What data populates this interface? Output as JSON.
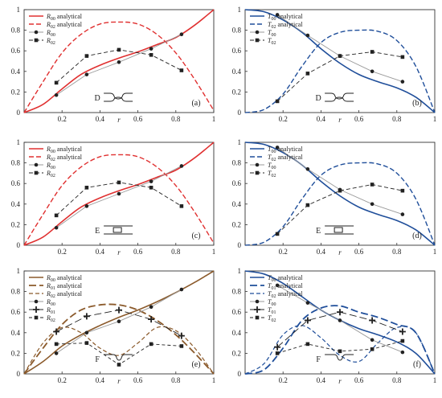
{
  "chart_data": [
    {
      "type": "line",
      "id": "a",
      "panel_label": "(a)",
      "inset_letter": "D",
      "inset_shape": "bump",
      "xlabel": "r",
      "xlim": [
        0,
        1
      ],
      "ylim": [
        0,
        1
      ],
      "xticks": [
        "0",
        "0.2",
        "0.4",
        "0.6",
        "0.8",
        "1"
      ],
      "yticks": [
        "0",
        "0.2",
        "0.4",
        "0.6",
        "0.8",
        "1"
      ],
      "legend": "top-left",
      "series": [
        {
          "name": "R_00 analytical",
          "label": "R",
          "sub": "00",
          "suffix": " analytical",
          "kind": "line",
          "color": "#e03030",
          "dash": "",
          "width": 1.6,
          "x": [
            0,
            0.1,
            0.2,
            0.3,
            0.4,
            0.5,
            0.6,
            0.7,
            0.8,
            0.9,
            1.0
          ],
          "y": [
            0,
            0.08,
            0.23,
            0.37,
            0.46,
            0.53,
            0.59,
            0.66,
            0.73,
            0.85,
            1.0
          ]
        },
        {
          "name": "R_02 analytical",
          "label": "R",
          "sub": "02",
          "suffix": " analytical",
          "kind": "line",
          "color": "#e03030",
          "dash": "6,3",
          "width": 1.4,
          "x": [
            0,
            0.1,
            0.2,
            0.3,
            0.4,
            0.5,
            0.6,
            0.7,
            0.8,
            0.9,
            1.0
          ],
          "y": [
            0,
            0.3,
            0.58,
            0.76,
            0.86,
            0.88,
            0.86,
            0.76,
            0.58,
            0.32,
            0.02
          ]
        },
        {
          "name": "R_00",
          "label": "R",
          "sub": "00",
          "suffix": "",
          "kind": "points",
          "marker": "circle",
          "color": "#222222",
          "line": "#999999",
          "x": [
            0.17,
            0.33,
            0.5,
            0.67,
            0.83
          ],
          "y": [
            0.17,
            0.37,
            0.49,
            0.62,
            0.76
          ]
        },
        {
          "name": "R_02",
          "label": "R",
          "sub": "02",
          "suffix": "",
          "kind": "points",
          "marker": "square",
          "color": "#222222",
          "line": "#222222",
          "linedash": "5,3",
          "x": [
            0.17,
            0.33,
            0.5,
            0.67,
            0.83
          ],
          "y": [
            0.29,
            0.55,
            0.61,
            0.56,
            0.41
          ]
        }
      ]
    },
    {
      "type": "line",
      "id": "b",
      "panel_label": "(b)",
      "inset_letter": "D",
      "inset_shape": "bump",
      "xlabel": "r",
      "xlim": [
        0,
        1
      ],
      "ylim": [
        0,
        1
      ],
      "xticks": [
        "0",
        "0.2",
        "0.4",
        "0.6",
        "0.8",
        "1"
      ],
      "yticks": [
        "0",
        "0.2",
        "0.4",
        "0.6",
        "0.8",
        "1"
      ],
      "legend": "top-left",
      "series": [
        {
          "name": "T_00 analytical",
          "label": "T",
          "sub": "00",
          "suffix": " analytical",
          "kind": "line",
          "color": "#1f4e9a",
          "dash": "",
          "width": 1.6,
          "x": [
            0,
            0.1,
            0.2,
            0.3,
            0.4,
            0.5,
            0.6,
            0.7,
            0.8,
            0.9,
            1.0
          ],
          "y": [
            1.0,
            0.98,
            0.9,
            0.78,
            0.62,
            0.48,
            0.37,
            0.3,
            0.24,
            0.15,
            0.0
          ]
        },
        {
          "name": "T_02 analytical",
          "label": "T",
          "sub": "02",
          "suffix": " analytical",
          "kind": "line",
          "color": "#1f4e9a",
          "dash": "6,3",
          "width": 1.4,
          "x": [
            0,
            0.1,
            0.2,
            0.3,
            0.4,
            0.5,
            0.6,
            0.7,
            0.8,
            0.9,
            1.0
          ],
          "y": [
            0,
            0.03,
            0.18,
            0.45,
            0.68,
            0.78,
            0.8,
            0.79,
            0.7,
            0.45,
            0.0
          ]
        },
        {
          "name": "T_00",
          "label": "T",
          "sub": "00",
          "suffix": "",
          "kind": "points",
          "marker": "circle",
          "color": "#222222",
          "line": "#999999",
          "x": [
            0.17,
            0.33,
            0.5,
            0.67,
            0.83
          ],
          "y": [
            0.95,
            0.75,
            0.55,
            0.4,
            0.3
          ]
        },
        {
          "name": "T_02",
          "label": "T",
          "sub": "02",
          "suffix": "",
          "kind": "points",
          "marker": "square",
          "color": "#222222",
          "line": "#222222",
          "linedash": "5,3",
          "x": [
            0.17,
            0.33,
            0.5,
            0.67,
            0.83
          ],
          "y": [
            0.11,
            0.38,
            0.55,
            0.59,
            0.54
          ]
        }
      ]
    },
    {
      "type": "line",
      "id": "c",
      "panel_label": "(c)",
      "inset_letter": "E",
      "inset_shape": "box",
      "xlabel": "r",
      "xlim": [
        0,
        1
      ],
      "ylim": [
        0,
        1
      ],
      "xticks": [
        "0",
        "0.2",
        "0.4",
        "0.6",
        "0.8",
        "1"
      ],
      "yticks": [
        "0",
        "0.2",
        "0.4",
        "0.6",
        "0.8",
        "1"
      ],
      "legend": "top-left",
      "series": [
        {
          "name": "R_00 analytical",
          "label": "R",
          "sub": "00",
          "suffix": " analytical",
          "kind": "line",
          "color": "#e03030",
          "dash": "",
          "width": 1.6,
          "x": [
            0,
            0.1,
            0.2,
            0.3,
            0.4,
            0.5,
            0.6,
            0.7,
            0.8,
            0.9,
            1.0
          ],
          "y": [
            0,
            0.08,
            0.23,
            0.37,
            0.46,
            0.53,
            0.59,
            0.66,
            0.73,
            0.85,
            1.0
          ]
        },
        {
          "name": "R_02 analytical",
          "label": "R",
          "sub": "02",
          "suffix": " analytical",
          "kind": "line",
          "color": "#e03030",
          "dash": "6,3",
          "width": 1.4,
          "x": [
            0,
            0.1,
            0.2,
            0.3,
            0.4,
            0.5,
            0.6,
            0.7,
            0.8,
            0.9,
            1.0
          ],
          "y": [
            0,
            0.3,
            0.58,
            0.76,
            0.86,
            0.88,
            0.86,
            0.76,
            0.58,
            0.32,
            0.02
          ]
        },
        {
          "name": "R_00",
          "label": "R",
          "sub": "00",
          "suffix": "",
          "kind": "points",
          "marker": "circle",
          "color": "#222222",
          "line": "#999999",
          "x": [
            0.17,
            0.33,
            0.5,
            0.67,
            0.83
          ],
          "y": [
            0.17,
            0.38,
            0.5,
            0.62,
            0.77
          ]
        },
        {
          "name": "R_02",
          "label": "R",
          "sub": "02",
          "suffix": "",
          "kind": "points",
          "marker": "square",
          "color": "#222222",
          "line": "#222222",
          "linedash": "5,3",
          "x": [
            0.17,
            0.33,
            0.5,
            0.67,
            0.83
          ],
          "y": [
            0.29,
            0.56,
            0.61,
            0.56,
            0.38
          ]
        }
      ]
    },
    {
      "type": "line",
      "id": "d",
      "panel_label": "(d)",
      "inset_letter": "E",
      "inset_shape": "box",
      "xlabel": "r",
      "xlim": [
        0,
        1
      ],
      "ylim": [
        0,
        1
      ],
      "xticks": [
        "0",
        "0.2",
        "0.4",
        "0.6",
        "0.8",
        "1"
      ],
      "yticks": [
        "0",
        "0.2",
        "0.4",
        "0.6",
        "0.8",
        "1"
      ],
      "legend": "top-left",
      "series": [
        {
          "name": "T_00 analytical",
          "label": "T",
          "sub": "00",
          "suffix": " analytical",
          "kind": "line",
          "color": "#1f4e9a",
          "dash": "",
          "width": 1.6,
          "x": [
            0,
            0.1,
            0.2,
            0.3,
            0.4,
            0.5,
            0.6,
            0.7,
            0.8,
            0.9,
            1.0
          ],
          "y": [
            1.0,
            0.98,
            0.9,
            0.78,
            0.62,
            0.48,
            0.37,
            0.3,
            0.24,
            0.15,
            0.0
          ]
        },
        {
          "name": "T_02 analytical",
          "label": "T",
          "sub": "02",
          "suffix": " analytical",
          "kind": "line",
          "color": "#1f4e9a",
          "dash": "6,3",
          "width": 1.4,
          "x": [
            0,
            0.1,
            0.2,
            0.3,
            0.4,
            0.5,
            0.6,
            0.7,
            0.8,
            0.9,
            1.0
          ],
          "y": [
            0,
            0.03,
            0.18,
            0.45,
            0.68,
            0.78,
            0.8,
            0.79,
            0.7,
            0.45,
            0.0
          ]
        },
        {
          "name": "T_00",
          "label": "T",
          "sub": "00",
          "suffix": "",
          "kind": "points",
          "marker": "circle",
          "color": "#222222",
          "line": "#999999",
          "x": [
            0.17,
            0.33,
            0.5,
            0.67,
            0.83
          ],
          "y": [
            0.95,
            0.74,
            0.54,
            0.4,
            0.3
          ]
        },
        {
          "name": "T_02",
          "label": "T",
          "sub": "02",
          "suffix": "",
          "kind": "points",
          "marker": "square",
          "color": "#222222",
          "line": "#222222",
          "linedash": "5,3",
          "x": [
            0.17,
            0.33,
            0.5,
            0.67,
            0.83
          ],
          "y": [
            0.11,
            0.39,
            0.53,
            0.59,
            0.53
          ]
        }
      ]
    },
    {
      "type": "line",
      "id": "e",
      "panel_label": "(e)",
      "inset_letter": "F",
      "inset_shape": "notch",
      "xlabel": "r",
      "xlim": [
        0,
        1
      ],
      "ylim": [
        0,
        1
      ],
      "xticks": [
        "0",
        "0.2",
        "0.4",
        "0.6",
        "0.8",
        "1"
      ],
      "yticks": [
        "0",
        "0.2",
        "0.4",
        "0.6",
        "0.8",
        "1"
      ],
      "legend": "top-left",
      "series": [
        {
          "name": "R_00 analytical",
          "label": "R",
          "sub": "00",
          "suffix": " analytical",
          "kind": "line",
          "color": "#8b5a2b",
          "dash": "",
          "width": 1.6,
          "x": [
            0,
            0.1,
            0.2,
            0.3,
            0.4,
            0.5,
            0.6,
            0.7,
            0.8,
            0.9,
            1.0
          ],
          "y": [
            0,
            0.12,
            0.27,
            0.38,
            0.47,
            0.55,
            0.62,
            0.7,
            0.79,
            0.89,
            1.0
          ]
        },
        {
          "name": "R_01 analytical",
          "label": "R",
          "sub": "01",
          "suffix": " analytical",
          "kind": "line",
          "color": "#8b5a2b",
          "dash": "9,4",
          "width": 1.8,
          "x": [
            0,
            0.1,
            0.2,
            0.3,
            0.4,
            0.5,
            0.6,
            0.7,
            0.8,
            0.9,
            1.0
          ],
          "y": [
            0,
            0.25,
            0.48,
            0.62,
            0.67,
            0.67,
            0.62,
            0.52,
            0.38,
            0.2,
            0.0
          ]
        },
        {
          "name": "R_02 analytical",
          "label": "R",
          "sub": "02",
          "suffix": " analytical",
          "kind": "line",
          "color": "#8b5a2b",
          "dash": "5,3",
          "width": 1.2,
          "x": [
            0,
            0.1,
            0.2,
            0.3,
            0.4,
            0.5,
            0.6,
            0.7,
            0.8,
            0.9,
            1.0
          ],
          "y": [
            0,
            0.3,
            0.45,
            0.4,
            0.25,
            0.18,
            0.3,
            0.45,
            0.42,
            0.25,
            0.0
          ]
        },
        {
          "name": "R_00",
          "label": "R",
          "sub": "00",
          "suffix": "",
          "kind": "points",
          "marker": "circle",
          "color": "#222222",
          "line": "#999999",
          "x": [
            0.17,
            0.33,
            0.5,
            0.67,
            0.83
          ],
          "y": [
            0.2,
            0.4,
            0.51,
            0.65,
            0.82
          ]
        },
        {
          "name": "R_01",
          "label": "R",
          "sub": "01",
          "suffix": "",
          "kind": "points",
          "marker": "plus",
          "color": "#222222",
          "line": "#222222",
          "linedash": "9,4",
          "x": [
            0.17,
            0.33,
            0.5,
            0.67,
            0.83
          ],
          "y": [
            0.41,
            0.56,
            0.62,
            0.53,
            0.37
          ]
        },
        {
          "name": "R_02",
          "label": "R",
          "sub": "02",
          "suffix": "",
          "kind": "points",
          "marker": "square",
          "color": "#222222",
          "line": "#222222",
          "linedash": "4,3",
          "x": [
            0.17,
            0.33,
            0.5,
            0.67,
            0.83
          ],
          "y": [
            0.29,
            0.3,
            0.09,
            0.29,
            0.27
          ]
        }
      ]
    },
    {
      "type": "line",
      "id": "f",
      "panel_label": "(f)",
      "inset_letter": "F",
      "inset_shape": "notch",
      "xlabel": "r",
      "xlim": [
        0,
        1
      ],
      "ylim": [
        0,
        1
      ],
      "xticks": [
        "0",
        "0.2",
        "0.4",
        "0.6",
        "0.8",
        "1"
      ],
      "yticks": [
        "0",
        "0.2",
        "0.4",
        "0.6",
        "0.8",
        "1"
      ],
      "legend": "top-left",
      "series": [
        {
          "name": "T_00 analytical",
          "label": "T",
          "sub": "00",
          "suffix": " analytical",
          "kind": "line",
          "color": "#1f4e9a",
          "dash": "",
          "width": 1.6,
          "x": [
            0,
            0.1,
            0.2,
            0.3,
            0.4,
            0.5,
            0.6,
            0.7,
            0.8,
            0.9,
            1.0
          ],
          "y": [
            1.0,
            0.97,
            0.88,
            0.75,
            0.62,
            0.52,
            0.44,
            0.38,
            0.31,
            0.2,
            0.0
          ]
        },
        {
          "name": "T_01 analytical",
          "label": "T",
          "sub": "01",
          "suffix": " analytical",
          "kind": "line",
          "color": "#1f4e9a",
          "dash": "9,4",
          "width": 1.8,
          "x": [
            0,
            0.1,
            0.2,
            0.3,
            0.4,
            0.5,
            0.6,
            0.7,
            0.8,
            0.9,
            1.0
          ],
          "y": [
            0,
            0.04,
            0.25,
            0.52,
            0.64,
            0.66,
            0.6,
            0.55,
            0.48,
            0.4,
            0.0
          ]
        },
        {
          "name": "T_02 analytical",
          "label": "T",
          "sub": "02",
          "suffix": " analytical",
          "kind": "line",
          "color": "#1f4e9a",
          "dash": "5,3",
          "width": 1.2,
          "x": [
            0,
            0.1,
            0.2,
            0.3,
            0.4,
            0.5,
            0.6,
            0.7,
            0.8,
            0.9,
            1.0
          ],
          "y": [
            0,
            0.1,
            0.38,
            0.47,
            0.35,
            0.18,
            0.12,
            0.3,
            0.45,
            0.4,
            0.0
          ]
        },
        {
          "name": "T_00",
          "label": "T",
          "sub": "00",
          "suffix": "",
          "kind": "points",
          "marker": "circle",
          "color": "#222222",
          "line": "#999999",
          "x": [
            0.17,
            0.33,
            0.5,
            0.67,
            0.83
          ],
          "y": [
            0.86,
            0.69,
            0.52,
            0.33,
            0.21
          ]
        },
        {
          "name": "T_01",
          "label": "T",
          "sub": "01",
          "suffix": "",
          "kind": "points",
          "marker": "plus",
          "color": "#222222",
          "line": "#222222",
          "linedash": "9,4",
          "x": [
            0.17,
            0.33,
            0.5,
            0.67,
            0.83
          ],
          "y": [
            0.26,
            0.52,
            0.6,
            0.52,
            0.41
          ]
        },
        {
          "name": "T_02",
          "label": "T",
          "sub": "02",
          "suffix": "",
          "kind": "points",
          "marker": "square",
          "color": "#222222",
          "line": "#222222",
          "linedash": "4,3",
          "x": [
            0.17,
            0.33,
            0.5,
            0.67,
            0.83
          ],
          "y": [
            0.2,
            0.29,
            0.22,
            0.24,
            0.32
          ]
        }
      ]
    }
  ]
}
